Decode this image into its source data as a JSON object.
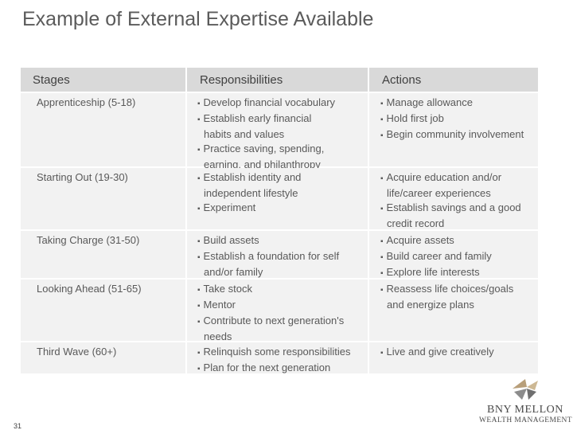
{
  "title": "Example of External Expertise Available",
  "table": {
    "headers": [
      "Stages",
      "Responsibilities",
      "Actions"
    ],
    "rows": [
      {
        "stage": "Apprenticeship (5-18)",
        "responsibilities": [
          "Develop financial vocabulary",
          "Establish early financial",
          "habits and values",
          "Practice saving, spending,",
          "earning, and philanthropy"
        ],
        "actions": [
          "Manage allowance",
          "Hold first job",
          "Begin community involvement"
        ]
      },
      {
        "stage": "Starting Out (19-30)",
        "responsibilities": [
          "Establish identity and",
          "independent lifestyle",
          "Experiment"
        ],
        "actions": [
          "Acquire education and/or",
          "life/career experiences",
          "Establish savings and a good",
          "credit record"
        ]
      },
      {
        "stage": "Taking Charge (31-50)",
        "responsibilities": [
          "Build assets",
          "Establish a foundation for self",
          "and/or family"
        ],
        "actions": [
          "Acquire assets",
          "Build career and family",
          "Explore life interests"
        ]
      },
      {
        "stage": "Looking Ahead (51-65)",
        "responsibilities": [
          "Take stock",
          "Mentor",
          "Contribute to next generation's",
          "needs"
        ],
        "actions": [
          "Reassess life choices/goals",
          "and energize plans"
        ]
      },
      {
        "stage": "Third Wave (60+)",
        "responsibilities": [
          "Relinquish some responsibilities",
          "Plan for the next generation"
        ],
        "actions": [
          "Live and give creatively"
        ]
      }
    ]
  },
  "page_number": "31",
  "logo": {
    "name": "BNY MELLON",
    "subtitle": "WEALTH MANAGEMENT",
    "icon": "bny-mellon-logo-icon",
    "colors": {
      "tan": "#b89f7a",
      "gray": "#7f7f7f"
    }
  },
  "bullet": "▪"
}
